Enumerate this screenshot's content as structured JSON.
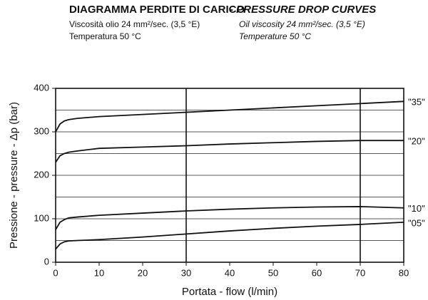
{
  "chart_data": {
    "type": "line",
    "title": "DIAGRAMMA PERDITE DI CARICO",
    "title_en": "- PRESSURE DROP CURVES",
    "subtitle_it": [
      "Viscosità olio 24 mm²/sec. (3,5 °E)",
      "Temperatura 50 °C"
    ],
    "subtitle_en": [
      "Oil viscosity 24 mm²/sec. (3,5 °E)",
      "Temperature 50 °C"
    ],
    "x_label": "Portata - flow (l/min)",
    "y_label": "Pressione - pressure - Δp (bar)",
    "x": [
      0,
      1,
      2,
      3,
      5,
      10,
      20,
      30,
      40,
      50,
      60,
      70,
      80
    ],
    "series": [
      {
        "name": "\"35\"",
        "color": "#111111",
        "values": [
          300,
          318,
          325,
          328,
          331,
          335,
          340,
          345,
          350,
          355,
          360,
          365,
          370
        ]
      },
      {
        "name": "\"20\"",
        "color": "#111111",
        "values": [
          230,
          245,
          250,
          253,
          256,
          262,
          265,
          268,
          272,
          275,
          278,
          280,
          280
        ]
      },
      {
        "name": "\"10\"",
        "color": "#111111",
        "values": [
          75,
          92,
          98,
          102,
          104,
          108,
          113,
          118,
          122,
          125,
          127,
          128,
          125
        ]
      },
      {
        "name": "\"05\"",
        "color": "#111111",
        "values": [
          30,
          42,
          47,
          49,
          50,
          52,
          58,
          65,
          72,
          78,
          83,
          87,
          92
        ]
      }
    ],
    "xlim": [
      0,
      80
    ],
    "xticks": [
      0,
      10,
      20,
      30,
      40,
      50,
      60,
      70,
      80
    ],
    "ylim": [
      0,
      400
    ],
    "yticks": [
      0,
      100,
      200,
      300,
      400
    ],
    "xgrid": [
      30,
      70
    ],
    "ygrid": [
      50,
      100,
      150,
      200,
      250,
      300,
      350
    ]
  }
}
